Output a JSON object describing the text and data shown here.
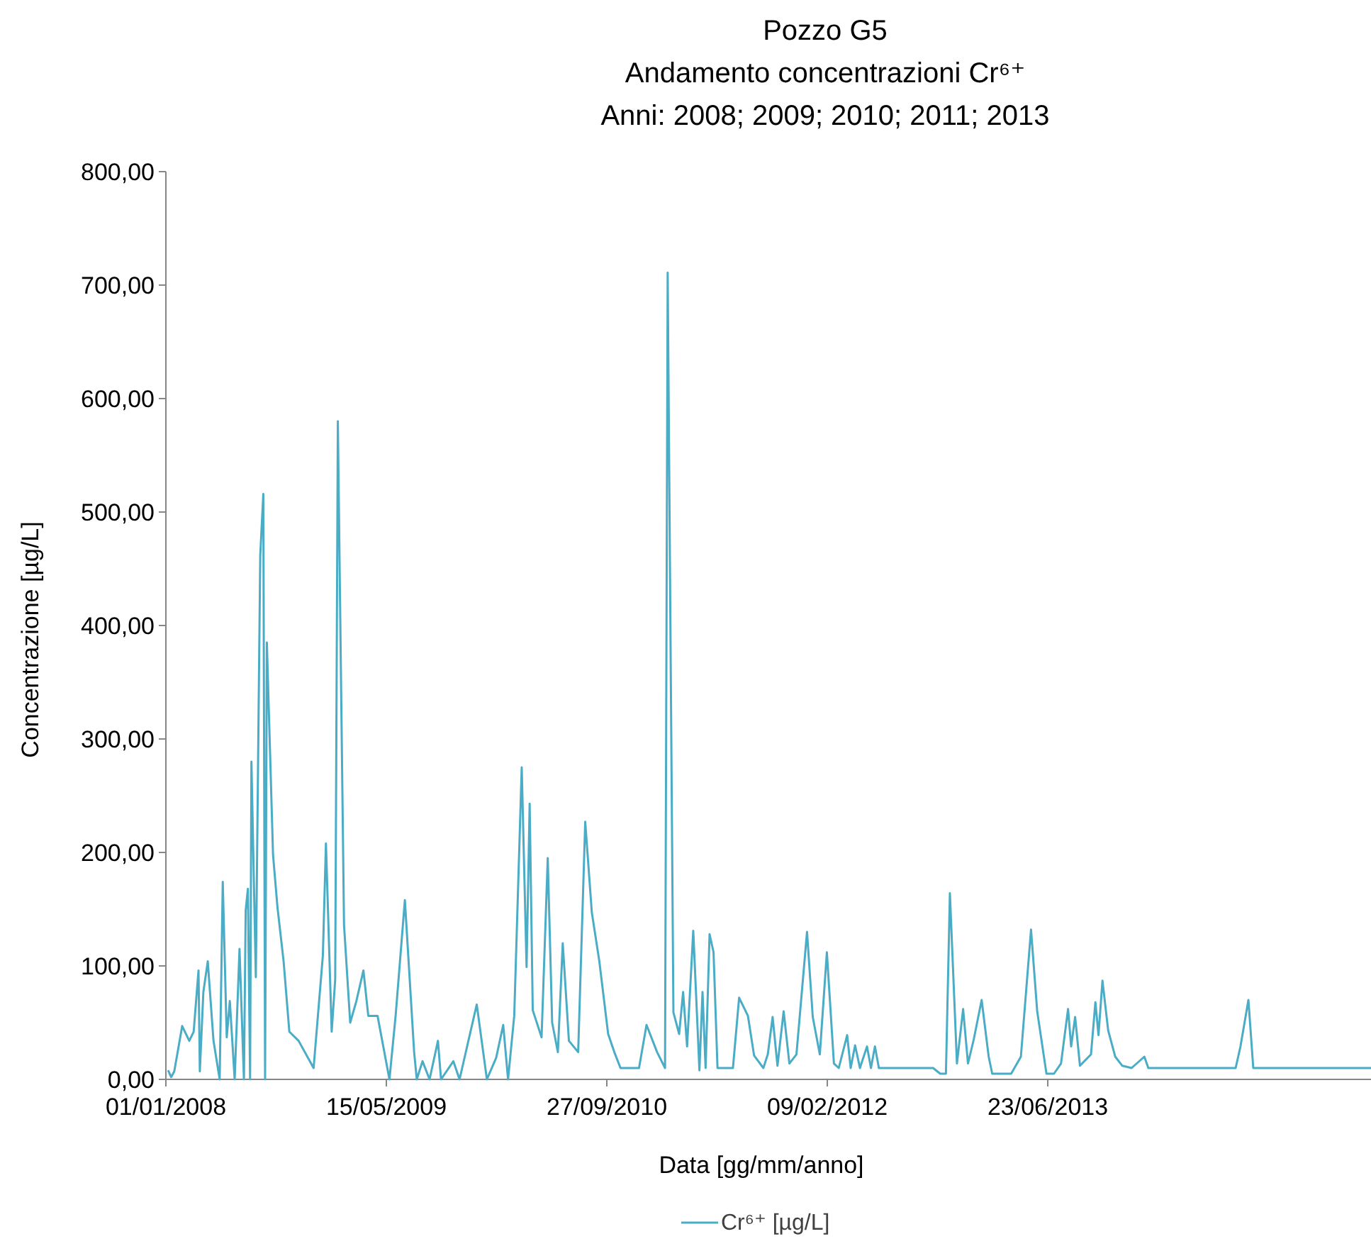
{
  "chart_data": {
    "type": "line",
    "title": "Pozzo G5",
    "subtitle": "Andamento concentrazioni Cr⁶⁺\nAnni: 2008; 2009; 2010; 2011; 2013",
    "xlabel": "Data [gg/mm/anno]",
    "ylabel": "Concentrazione  [µg/L]",
    "x": [
      "2008-01-06",
      "2008-01-13",
      "2008-01-20",
      "2008-02-07",
      "2008-02-23",
      "2008-03-04",
      "2008-03-15",
      "2008-03-18",
      "2008-03-26",
      "2008-04-05",
      "2008-04-18",
      "2008-05-02",
      "2008-05-09",
      "2008-05-18",
      "2008-05-25",
      "2008-06-05",
      "2008-06-16",
      "2008-06-26",
      "2008-06-30",
      "2008-07-05",
      "2008-07-10",
      "2008-07-13",
      "2008-07-23",
      "2008-08-02",
      "2008-08-09",
      "2008-08-13",
      "2008-08-17",
      "2008-08-31",
      "2008-09-10",
      "2008-09-24",
      "2008-10-07",
      "2008-10-28",
      "2008-12-01",
      "2008-12-22",
      "2008-12-29",
      "2009-01-11",
      "2009-01-19",
      "2009-01-25",
      "2009-02-08",
      "2009-02-22",
      "2009-03-08",
      "2009-03-24",
      "2009-04-04",
      "2009-04-25",
      "2009-05-22",
      "2009-06-05",
      "2009-06-26",
      "2009-07-17",
      "2009-07-23",
      "2009-08-05",
      "2009-08-21",
      "2009-09-09",
      "2009-09-16",
      "2009-10-14",
      "2009-10-28",
      "2009-12-06",
      "2009-12-29",
      "2010-01-19",
      "2010-02-04",
      "2010-02-15",
      "2010-03-01",
      "2010-03-18",
      "2010-03-29",
      "2010-04-05",
      "2010-04-12",
      "2010-05-02",
      "2010-05-16",
      "2010-05-26",
      "2010-06-08",
      "2010-06-19",
      "2010-07-03",
      "2010-07-24",
      "2010-08-09",
      "2010-08-24",
      "2010-09-10",
      "2010-09-30",
      "2010-10-14",
      "2010-10-28",
      "2010-12-09",
      "2010-12-26",
      "2011-01-19",
      "2011-02-06",
      "2011-02-12",
      "2011-02-25",
      "2011-03-10",
      "2011-03-19",
      "2011-03-28",
      "2011-04-11",
      "2011-04-25",
      "2011-05-02",
      "2011-05-09",
      "2011-05-18",
      "2011-05-27",
      "2011-06-05",
      "2011-07-10",
      "2011-07-24",
      "2011-08-13",
      "2011-08-27",
      "2011-09-17",
      "2011-09-27",
      "2011-10-08",
      "2011-10-19",
      "2011-11-02",
      "2011-11-15",
      "2011-12-01",
      "2011-12-25",
      "2012-01-07",
      "2012-01-23",
      "2012-02-08",
      "2012-02-24",
      "2012-03-06",
      "2012-03-25",
      "2012-04-02",
      "2012-04-12",
      "2012-04-23",
      "2012-05-09",
      "2012-05-18",
      "2012-05-27",
      "2012-06-05",
      "2012-10-06",
      "2012-10-22",
      "2012-11-04",
      "2012-11-13",
      "2012-11-29",
      "2012-12-13",
      "2012-12-24",
      "2013-01-06",
      "2013-01-24",
      "2013-02-09",
      "2013-02-17",
      "2013-04-01",
      "2013-04-23",
      "2013-05-16",
      "2013-05-30",
      "2013-06-20",
      "2013-07-07",
      "2013-07-23",
      "2013-08-08",
      "2013-08-15",
      "2013-08-24",
      "2013-09-04",
      "2013-09-29",
      "2013-10-09",
      "2013-10-16",
      "2013-10-25",
      "2013-11-07",
      "2013-11-23",
      "2013-12-09",
      "2013-12-30",
      "2014-01-28",
      "2014-02-06",
      "2014-08-23",
      "2014-09-03",
      "2014-09-21",
      "2014-10-02",
      "2015-06-26"
    ],
    "series": [
      {
        "name": "Cr⁶⁺ [µg/L]",
        "color": "#4bacc6",
        "values": [
          8,
          2,
          7,
          47,
          34,
          42,
          96,
          7,
          77,
          104,
          34,
          0,
          174,
          37,
          69,
          0,
          115,
          0,
          149,
          168,
          0,
          280,
          90,
          462,
          516,
          0,
          385,
          198,
          152,
          104,
          42,
          34,
          10,
          109,
          208,
          42,
          88,
          580,
          136,
          50,
          69,
          96,
          56,
          56,
          0,
          56,
          158,
          24,
          0,
          16,
          0,
          34,
          0,
          16,
          0,
          66,
          0,
          19,
          48,
          0,
          56,
          275,
          99,
          243,
          61,
          37,
          195,
          50,
          24,
          120,
          34,
          24,
          227,
          147,
          104,
          40,
          24,
          10,
          10,
          48,
          24,
          10,
          711,
          59,
          40,
          77,
          29,
          131,
          8,
          77,
          10,
          128,
          112,
          10,
          10,
          72,
          56,
          21,
          10,
          22,
          55,
          12,
          60,
          14,
          22,
          130,
          55,
          22,
          112,
          14,
          10,
          39,
          10,
          30,
          10,
          29,
          10,
          29,
          10,
          10,
          5,
          5,
          164,
          14,
          62,
          14,
          35,
          70,
          20,
          5,
          5,
          20,
          132,
          60,
          5,
          5,
          14,
          62,
          29,
          55,
          12,
          22,
          68,
          39,
          87,
          43,
          20,
          12,
          10,
          20,
          10,
          10,
          29,
          70,
          10,
          10
        ]
      }
    ],
    "xlim": [
      "2008-01-01",
      "2015-06-26"
    ],
    "xticks": [
      {
        "value": "2008-01-01",
        "label": "01/01/2008"
      },
      {
        "value": "2009-05-15",
        "label": "15/05/2009"
      },
      {
        "value": "2010-09-27",
        "label": "27/09/2010"
      },
      {
        "value": "2012-02-09",
        "label": "09/02/2012"
      },
      {
        "value": "2013-06-23",
        "label": "23/06/2013"
      }
    ],
    "ylim": [
      0,
      800
    ],
    "yticks": [
      {
        "value": 0,
        "label": "0,00"
      },
      {
        "value": 100,
        "label": "100,00"
      },
      {
        "value": 200,
        "label": "200,00"
      },
      {
        "value": 300,
        "label": "300,00"
      },
      {
        "value": 400,
        "label": "400,00"
      },
      {
        "value": 500,
        "label": "500,00"
      },
      {
        "value": 600,
        "label": "600,00"
      },
      {
        "value": 700,
        "label": "700,00"
      },
      {
        "value": 800,
        "label": "800,00"
      }
    ],
    "grid": false,
    "legend": "bottom",
    "marker": "none",
    "line_style": "solid"
  }
}
